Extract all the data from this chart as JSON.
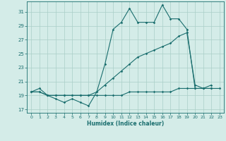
{
  "xlabel": "Humidex (Indice chaleur)",
  "xlim": [
    -0.5,
    23.5
  ],
  "ylim": [
    16.5,
    32.5
  ],
  "yticks": [
    17,
    19,
    21,
    23,
    25,
    27,
    29,
    31
  ],
  "xticks": [
    0,
    1,
    2,
    3,
    4,
    5,
    6,
    7,
    8,
    9,
    10,
    11,
    12,
    13,
    14,
    15,
    16,
    17,
    18,
    19,
    20,
    21,
    22,
    23
  ],
  "bg_color": "#d4ece8",
  "grid_color": "#aacfc8",
  "line_color": "#1a6e6e",
  "line1_x": [
    0,
    1,
    2,
    3,
    4,
    5,
    6,
    7,
    8,
    9,
    10,
    11,
    12,
    13,
    14,
    15,
    16,
    17,
    18,
    19,
    20,
    21,
    22
  ],
  "line1_y": [
    19.5,
    20.0,
    19.0,
    18.5,
    18.0,
    18.5,
    18.0,
    17.5,
    19.5,
    23.5,
    28.5,
    29.5,
    31.5,
    29.5,
    29.5,
    29.5,
    32.0,
    30.0,
    30.0,
    28.5,
    20.0,
    20.0,
    20.5
  ],
  "line2_x": [
    0,
    1,
    2,
    3,
    4,
    5,
    6,
    7,
    8,
    9,
    10,
    11,
    12,
    13,
    14,
    15,
    16,
    17,
    18,
    19,
    20,
    21,
    22
  ],
  "line2_y": [
    19.5,
    19.5,
    19.0,
    19.0,
    19.0,
    19.0,
    19.0,
    19.0,
    19.5,
    20.5,
    21.5,
    22.5,
    23.5,
    24.5,
    25.0,
    25.5,
    26.0,
    26.5,
    27.5,
    28.0,
    20.5,
    20.0,
    20.0
  ],
  "line3_x": [
    0,
    1,
    2,
    3,
    4,
    5,
    6,
    7,
    8,
    9,
    10,
    11,
    12,
    13,
    14,
    15,
    16,
    17,
    18,
    19,
    20,
    21,
    22,
    23
  ],
  "line3_y": [
    19.5,
    19.5,
    19.0,
    19.0,
    19.0,
    19.0,
    19.0,
    19.0,
    19.0,
    19.0,
    19.0,
    19.0,
    19.5,
    19.5,
    19.5,
    19.5,
    19.5,
    19.5,
    20.0,
    20.0,
    20.0,
    20.0,
    20.0,
    20.0
  ]
}
